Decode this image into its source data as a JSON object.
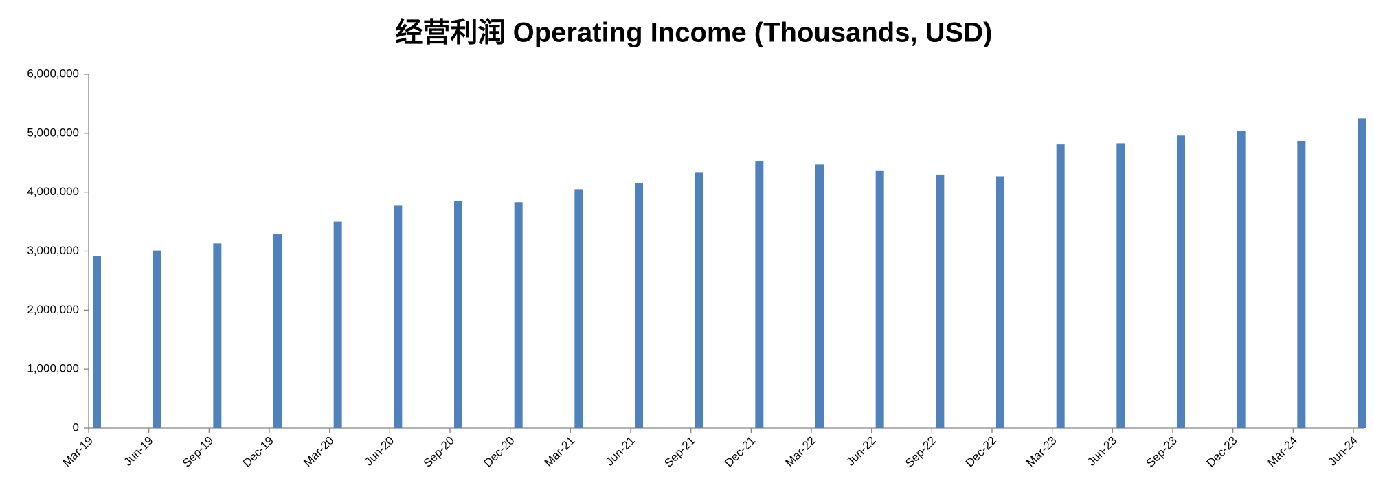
{
  "chart_data": {
    "type": "bar",
    "title": "经营利润 Operating Income (Thousands, USD)",
    "categories": [
      "Mar-19",
      "Jun-19",
      "Sep-19",
      "Dec-19",
      "Mar-20",
      "Jun-20",
      "Sep-20",
      "Dec-20",
      "Mar-21",
      "Jun-21",
      "Sep-21",
      "Dec-21",
      "Mar-22",
      "Jun-22",
      "Sep-22",
      "Dec-22",
      "Mar-23",
      "Jun-23",
      "Sep-23",
      "Dec-23",
      "Mar-24",
      "Jun-24"
    ],
    "values": [
      2920000,
      3010000,
      3130000,
      3290000,
      3500000,
      3770000,
      3850000,
      3830000,
      4050000,
      4150000,
      4330000,
      4530000,
      4470000,
      4360000,
      4300000,
      4270000,
      4810000,
      4830000,
      4960000,
      5040000,
      4870000,
      5250000
    ],
    "color": "#4f81bd",
    "ylim": [
      0,
      6000000
    ],
    "yticks": [
      0,
      {
        "value": 1000000,
        "label": "1,000,000"
      },
      {
        "value": 2000000,
        "label": "2,000,000"
      },
      {
        "value": 3000000,
        "label": "3,000,000"
      },
      {
        "value": 4000000,
        "label": "4,000,000"
      },
      {
        "value": 5000000,
        "label": "5,000,000"
      },
      {
        "value": 6000000,
        "label": "6,000,000"
      }
    ],
    "grid": false
  }
}
